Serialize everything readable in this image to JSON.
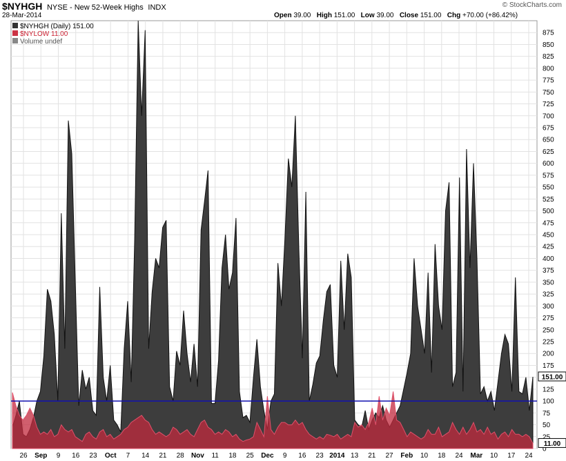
{
  "header": {
    "symbol": "$NYHGH",
    "name": "NYSE - New 52-Week Highs",
    "type": "INDX",
    "date": "28-Mar-2014",
    "open_label": "Open",
    "open": "39.00",
    "high_label": "High",
    "high": "151.00",
    "low_label": "Low",
    "low": "39.00",
    "close_label": "Close",
    "close": "151.00",
    "chg_label": "Chg",
    "chg": "+70.00 (+86.42%)",
    "brand": "© StockCharts.com"
  },
  "legend": {
    "nyhgh": "$NYHGH (Daily) 151.00",
    "nylow": "$NYLOW 11.00",
    "volume": "Volume undef"
  },
  "chart_data": {
    "type": "area",
    "ylim": [
      0,
      900
    ],
    "y_ticks": [
      0,
      25,
      50,
      75,
      100,
      125,
      150,
      175,
      200,
      225,
      250,
      275,
      300,
      325,
      350,
      375,
      400,
      425,
      450,
      475,
      500,
      525,
      550,
      575,
      600,
      625,
      650,
      675,
      700,
      725,
      750,
      775,
      800,
      825,
      850,
      875
    ],
    "x_ticks": [
      "26",
      "Sep",
      "9",
      "16",
      "23",
      "Oct",
      "7",
      "14",
      "21",
      "28",
      "Nov",
      "11",
      "18",
      "25",
      "Dec",
      "9",
      "16",
      "23",
      "2014",
      "13",
      "21",
      "27",
      "Feb",
      "10",
      "18",
      "24",
      "Mar",
      "10",
      "17",
      "24"
    ],
    "reference_line": 100,
    "series": [
      {
        "name": "$NYHGH",
        "color": "#333333",
        "last_label": "151.00",
        "values": [
          45,
          70,
          100,
          30,
          25,
          40,
          65,
          100,
          120,
          195,
          335,
          310,
          240,
          100,
          495,
          210,
          690,
          620,
          350,
          90,
          165,
          125,
          150,
          80,
          70,
          340,
          150,
          100,
          175,
          60,
          50,
          35,
          210,
          310,
          140,
          440,
          900,
          700,
          880,
          210,
          330,
          400,
          380,
          465,
          480,
          130,
          100,
          205,
          175,
          290,
          200,
          140,
          220,
          130,
          460,
          520,
          585,
          95,
          95,
          185,
          380,
          450,
          335,
          370,
          485,
          120,
          65,
          70,
          55,
          150,
          230,
          130,
          80,
          40,
          100,
          115,
          390,
          300,
          440,
          610,
          550,
          700,
          420,
          190,
          540,
          100,
          135,
          180,
          195,
          270,
          330,
          345,
          175,
          150,
          395,
          250,
          410,
          360,
          60,
          50,
          45,
          80,
          40,
          60,
          75,
          65,
          90,
          60,
          45,
          60,
          75,
          90,
          125,
          160,
          200,
          400,
          300,
          250,
          200,
          370,
          160,
          430,
          300,
          250,
          500,
          560,
          130,
          160,
          570,
          120,
          630,
          380,
          600,
          400,
          115,
          130,
          100,
          120,
          80,
          140,
          200,
          240,
          220,
          120,
          360,
          120,
          115,
          150,
          80,
          151
        ]
      },
      {
        "name": "$NYLOW",
        "color": "#cc3344",
        "last_label": "11.00",
        "values": [
          118,
          90,
          70,
          60,
          70,
          85,
          70,
          45,
          30,
          35,
          30,
          40,
          25,
          30,
          50,
          40,
          35,
          40,
          25,
          20,
          15,
          30,
          35,
          25,
          20,
          35,
          40,
          25,
          30,
          20,
          25,
          30,
          40,
          45,
          55,
          60,
          65,
          70,
          60,
          55,
          40,
          30,
          35,
          30,
          25,
          30,
          45,
          40,
          30,
          35,
          40,
          30,
          25,
          40,
          55,
          60,
          45,
          40,
          30,
          35,
          30,
          40,
          35,
          25,
          30,
          20,
          15,
          18,
          20,
          25,
          55,
          40,
          25,
          110,
          40,
          30,
          45,
          55,
          55,
          50,
          50,
          60,
          50,
          55,
          40,
          30,
          25,
          20,
          25,
          20,
          30,
          28,
          25,
          30,
          20,
          25,
          30,
          25,
          55,
          45,
          50,
          40,
          55,
          85,
          50,
          110,
          60,
          85,
          70,
          120,
          60,
          55,
          40,
          25,
          35,
          30,
          25,
          20,
          25,
          40,
          30,
          30,
          45,
          25,
          30,
          35,
          55,
          40,
          30,
          45,
          30,
          40,
          55,
          35,
          40,
          30,
          45,
          30,
          35,
          20,
          30,
          35,
          25,
          40,
          30,
          30,
          25,
          30,
          25,
          11
        ]
      }
    ]
  }
}
